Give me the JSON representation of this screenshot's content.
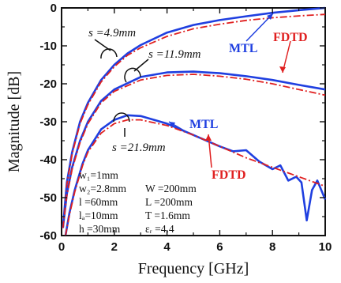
{
  "chart_data": {
    "type": "line",
    "xlabel": "Frequency  [GHz]",
    "ylabel": "Magnitude [dB]",
    "xlim": [
      0,
      10
    ],
    "ylim": [
      -60,
      0
    ],
    "x_ticks": [
      "0",
      "2",
      "4",
      "6",
      "8",
      "10"
    ],
    "y_ticks": [
      "0",
      "-10",
      "-20",
      "-30",
      "-40",
      "-50",
      "-60"
    ],
    "grid": false,
    "colors": {
      "MTL": "#1f3fe0",
      "FDTD": "#e02020"
    },
    "legend_labels": [
      {
        "label": "MTL",
        "series": "MTL"
      },
      {
        "label": "FDTD",
        "series": "FDTD"
      },
      {
        "label": "MTL",
        "series": "MTL"
      },
      {
        "label": "FDTD",
        "series": "FDTD"
      }
    ],
    "group_labels": [
      {
        "label": "s =4.9mm"
      },
      {
        "label": "s =11.9mm"
      },
      {
        "label": "s =21.9mm"
      }
    ],
    "parameters": [
      "w₁=1mm",
      "w₂=2.8mm",
      "l =60mm",
      "lₐ=10mm",
      "h =30mm",
      "W =200mm",
      "L =200mm",
      "T =1.6mm",
      "εᵣ =4.4"
    ],
    "series": [
      {
        "name": "MTL",
        "group": "s =4.9mm",
        "style": "solid",
        "x": [
          0.05,
          0.2,
          0.4,
          0.7,
          1.0,
          1.5,
          2.0,
          2.5,
          3.0,
          4.0,
          5.0,
          6.0,
          7.0,
          8.0,
          9.0,
          10.0
        ],
        "y": [
          -58,
          -46,
          -38,
          -30,
          -25,
          -19,
          -15,
          -12,
          -9.8,
          -6.5,
          -4.5,
          -3.2,
          -2.2,
          -1.3,
          -0.6,
          0
        ]
      },
      {
        "name": "FDTD",
        "group": "s =4.9mm",
        "style": "dashdot",
        "x": [
          0.05,
          0.2,
          0.4,
          0.7,
          1.0,
          1.5,
          2.0,
          2.5,
          3.0,
          4.0,
          5.0,
          6.0,
          7.0,
          8.0,
          9.0,
          10.0
        ],
        "y": [
          -58,
          -46.5,
          -38.5,
          -30.5,
          -25.5,
          -19.5,
          -15.5,
          -12.5,
          -10.5,
          -7.5,
          -5.5,
          -4.3,
          -3.3,
          -2.6,
          -2.1,
          -1.7
        ]
      },
      {
        "name": "MTL",
        "group": "s =11.9mm",
        "style": "solid",
        "x": [
          0.05,
          0.2,
          0.4,
          0.7,
          1.0,
          1.5,
          2.0,
          3.0,
          4.0,
          5.0,
          6.0,
          7.0,
          8.0,
          9.0,
          10.0
        ],
        "y": [
          -58,
          -49,
          -42,
          -35,
          -30,
          -24.5,
          -21.5,
          -18.2,
          -17.0,
          -16.8,
          -17.2,
          -18.0,
          -19.0,
          -20.3,
          -21.5
        ]
      },
      {
        "name": "FDTD",
        "group": "s =11.9mm",
        "style": "dashdot",
        "x": [
          0.05,
          0.2,
          0.4,
          0.7,
          1.0,
          1.5,
          2.0,
          3.0,
          4.0,
          5.0,
          6.0,
          7.0,
          8.0,
          9.0,
          10.0
        ],
        "y": [
          -58,
          -49.5,
          -42.5,
          -35.5,
          -30.5,
          -25.0,
          -22.0,
          -19.0,
          -17.8,
          -17.5,
          -18.0,
          -18.8,
          -20.0,
          -21.5,
          -23.0
        ]
      },
      {
        "name": "MTL",
        "group": "s =21.9mm",
        "style": "solid",
        "x": [
          0.15,
          0.3,
          0.5,
          0.8,
          1.0,
          1.5,
          2.0,
          2.5,
          3.0,
          4.0,
          5.0,
          6.0,
          6.5,
          7.0,
          7.5,
          8.0,
          8.3,
          8.6,
          8.9,
          9.1,
          9.3,
          9.5,
          9.7,
          10.0
        ],
        "y": [
          -60,
          -54,
          -48,
          -41,
          -37.5,
          -32,
          -29.5,
          -28.3,
          -28.5,
          -30.5,
          -33.5,
          -36.5,
          -37.8,
          -37.5,
          -40.5,
          -42.5,
          -41.5,
          -45.5,
          -44.5,
          -46.0,
          -56.0,
          -48.0,
          -45.5,
          -50.5
        ]
      },
      {
        "name": "FDTD",
        "group": "s =21.9mm",
        "style": "dashdot",
        "x": [
          0.15,
          0.3,
          0.5,
          0.8,
          1.0,
          1.5,
          2.0,
          2.5,
          3.0,
          4.0,
          5.0,
          6.0,
          7.0,
          8.0,
          9.0,
          10.0
        ],
        "y": [
          -60,
          -54.5,
          -48.5,
          -41.5,
          -38,
          -33,
          -30.5,
          -29.5,
          -29.5,
          -31.0,
          -33.5,
          -36.5,
          -39.5,
          -42.0,
          -44.5,
          -47.0
        ]
      }
    ]
  }
}
